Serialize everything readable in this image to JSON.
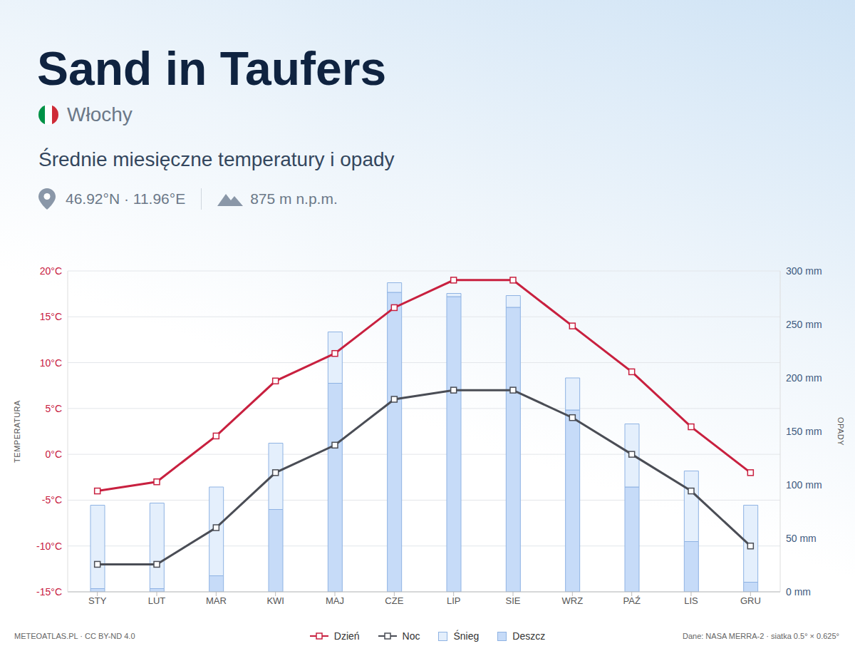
{
  "header": {
    "country": "Włochy",
    "coordinates": "46.92°N · 11.96°E",
    "elevation": "875 m n.p.m."
  },
  "footer": {
    "credit": "METEOATLAS.PL · CC BY-ND 4.0",
    "source": "Dane: NASA MERRA-2 · siatka 0.5° × 0.625°"
  },
  "chart_data": {
    "type": "combo",
    "title": "Sand in Taufers",
    "subtitle": "Średnie miesięczne temperatury i opady",
    "categories": [
      "STY",
      "LUT",
      "MAR",
      "KWI",
      "MAJ",
      "CZE",
      "LIP",
      "SIE",
      "WRZ",
      "PAŹ",
      "LIS",
      "GRU"
    ],
    "series": [
      {
        "name": "Dzień",
        "type": "line",
        "color": "#c8203f",
        "marker": "square",
        "values": [
          -4,
          -3,
          2,
          8,
          11,
          16,
          19,
          19,
          14,
          9,
          3,
          -2
        ]
      },
      {
        "name": "Noc",
        "type": "line",
        "color": "#4a4d55",
        "marker": "square",
        "values": [
          -12,
          -12,
          -8,
          -2,
          1,
          6,
          7,
          7,
          4,
          0,
          -4,
          -10
        ]
      },
      {
        "name": "Śnieg",
        "type": "bar",
        "axis": "y2",
        "color": "#e4effc",
        "values": [
          78,
          80,
          83,
          62,
          48,
          9,
          3,
          11,
          30,
          59,
          66,
          72
        ]
      },
      {
        "name": "Deszcz",
        "type": "bar",
        "axis": "y2",
        "color": "#c6dbf8",
        "values": [
          3,
          3,
          15,
          77,
          195,
          280,
          276,
          266,
          170,
          98,
          47,
          9
        ]
      }
    ],
    "stacked": true,
    "ylabel": "TEMPERATURA",
    "y2label": "OPADY",
    "ylim": [
      -15,
      20
    ],
    "yticks": [
      {
        "value": -15,
        "label": "-15°C"
      },
      {
        "value": -10,
        "label": "-10°C"
      },
      {
        "value": -5,
        "label": "-5°C"
      },
      {
        "value": 0,
        "label": "0°C"
      },
      {
        "value": 5,
        "label": "5°C"
      },
      {
        "value": 10,
        "label": "10°C"
      },
      {
        "value": 15,
        "label": "15°C"
      },
      {
        "value": 20,
        "label": "20°C"
      }
    ],
    "y2lim": [
      0,
      300
    ],
    "y2ticks": [
      {
        "value": 0,
        "label": "0 mm"
      },
      {
        "value": 50,
        "label": "50 mm"
      },
      {
        "value": 100,
        "label": "100 mm"
      },
      {
        "value": 150,
        "label": "150 mm"
      },
      {
        "value": 200,
        "label": "200 mm"
      },
      {
        "value": 250,
        "label": "250 mm"
      },
      {
        "value": 300,
        "label": "300 mm"
      }
    ],
    "grid": true,
    "legend": "bottom"
  }
}
